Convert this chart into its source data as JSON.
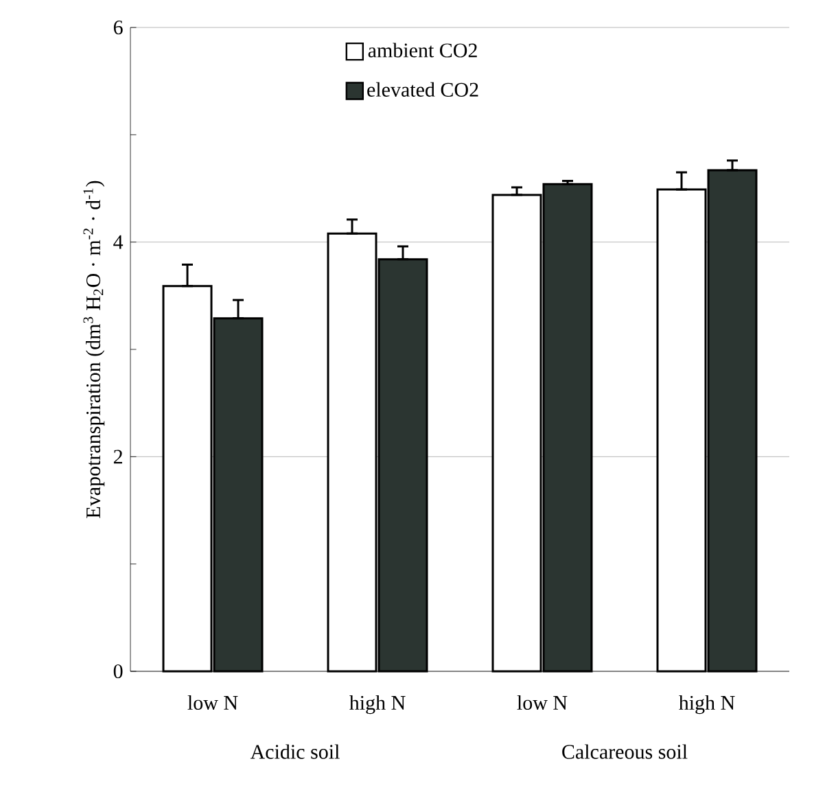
{
  "chart_data": {
    "type": "bar",
    "ylabel": "Evapotranspiration  (dm$^{3}$ H$_{2}$O · m$^{-2}$ · d$^{-1}$)",
    "categories": [
      "low N",
      "high N",
      "low N",
      "high N"
    ],
    "series": [
      {
        "name": "ambient CO2",
        "color": "#ffffff",
        "values": [
          3.59,
          4.08,
          4.44,
          4.49
        ],
        "errors": [
          [
            3.59,
            3.79
          ],
          [
            4.08,
            4.21
          ],
          [
            4.44,
            4.51
          ],
          [
            4.49,
            4.65
          ]
        ]
      },
      {
        "name": "elevated CO2",
        "color": "#2b3531",
        "values": [
          3.29,
          3.84,
          4.54,
          4.67
        ],
        "errors": [
          [
            3.29,
            3.46
          ],
          [
            3.84,
            3.96
          ],
          [
            4.54,
            4.57
          ],
          [
            4.67,
            4.76
          ]
        ]
      }
    ],
    "ylim": [
      0,
      6
    ],
    "yticks": [
      0,
      {
        "value": 1,
        "label": null
      },
      2,
      {
        "value": 3,
        "label": null
      },
      4,
      {
        "value": 5,
        "label": null
      },
      6
    ],
    "grid": "y",
    "legend": "top",
    "annotations": [
      "Acidic soil",
      "Calcareous soil"
    ]
  }
}
